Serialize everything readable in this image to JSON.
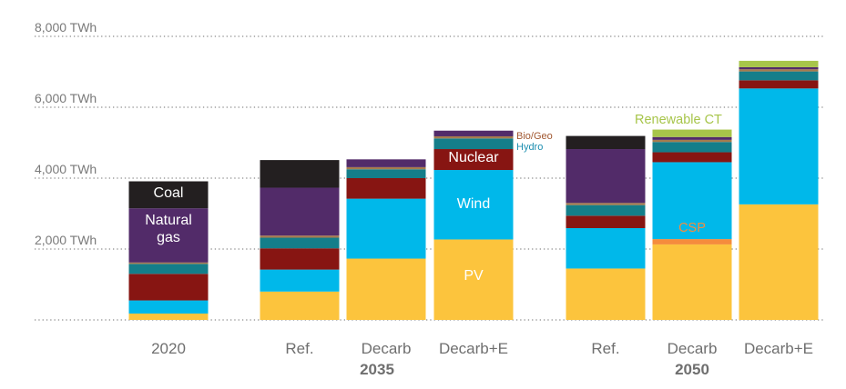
{
  "chart_data": {
    "type": "bar",
    "stacked": true,
    "y_unit": "TWh",
    "ylim": [
      0,
      8000
    ],
    "yticks": [
      "2,000 TWh",
      "4,000 TWh",
      "6,000 TWh",
      "8,000 TWh"
    ],
    "ytick_values": [
      2000,
      4000,
      6000,
      8000
    ],
    "grid": "dotted horizontal",
    "categories": [
      "2020",
      "Ref.",
      "Decarb",
      "Decarb+E",
      "Ref.",
      "Decarb",
      "Decarb+E"
    ],
    "groups": [
      {
        "label": "2035",
        "categories": [
          1,
          2,
          3
        ]
      },
      {
        "label": "2050",
        "categories": [
          4,
          5,
          6
        ]
      }
    ],
    "series": [
      {
        "name": "PV",
        "color": "#FCC43D",
        "values": [
          180,
          800,
          1730,
          2270,
          1450,
          2130,
          3260
        ]
      },
      {
        "name": "CSP",
        "color": "#F58C3C",
        "values": [
          0,
          0,
          0,
          0,
          0,
          150,
          0
        ]
      },
      {
        "name": "Wind",
        "color": "#00B8EA",
        "values": [
          370,
          620,
          1690,
          1960,
          1140,
          2170,
          3270
        ]
      },
      {
        "name": "",
        "color": "#871512",
        "values": [
          750,
          600,
          580,
          590,
          350,
          280,
          230
        ]
      },
      {
        "name": "Hydro",
        "color": "#147E8A",
        "values": [
          280,
          300,
          250,
          300,
          300,
          290,
          250
        ]
      },
      {
        "name": "Bio/Geo",
        "color": "#A67B4E",
        "values": [
          40,
          60,
          60,
          60,
          60,
          60,
          60
        ]
      },
      {
        "name": "Natural gas",
        "color": "#522B69",
        "values": [
          1530,
          1350,
          220,
          160,
          1520,
          80,
          60
        ]
      },
      {
        "name": "Coal",
        "color": "#231F20",
        "values": [
          760,
          780,
          0,
          0,
          370,
          0,
          0
        ]
      },
      {
        "name": "Renewable CT",
        "color": "#A7C54A",
        "values": [
          0,
          0,
          0,
          0,
          0,
          210,
          180
        ]
      }
    ],
    "annotations": {
      "coal": "Coal",
      "natural_gas_1": "Natural",
      "natural_gas_2": "gas",
      "nuclear": "Nuclear",
      "wind": "Wind",
      "pv": "PV",
      "bio_geo": "Bio/Geo",
      "hydro": "Hydro",
      "renewable_ct": "Renewable CT",
      "csp": "CSP"
    }
  }
}
